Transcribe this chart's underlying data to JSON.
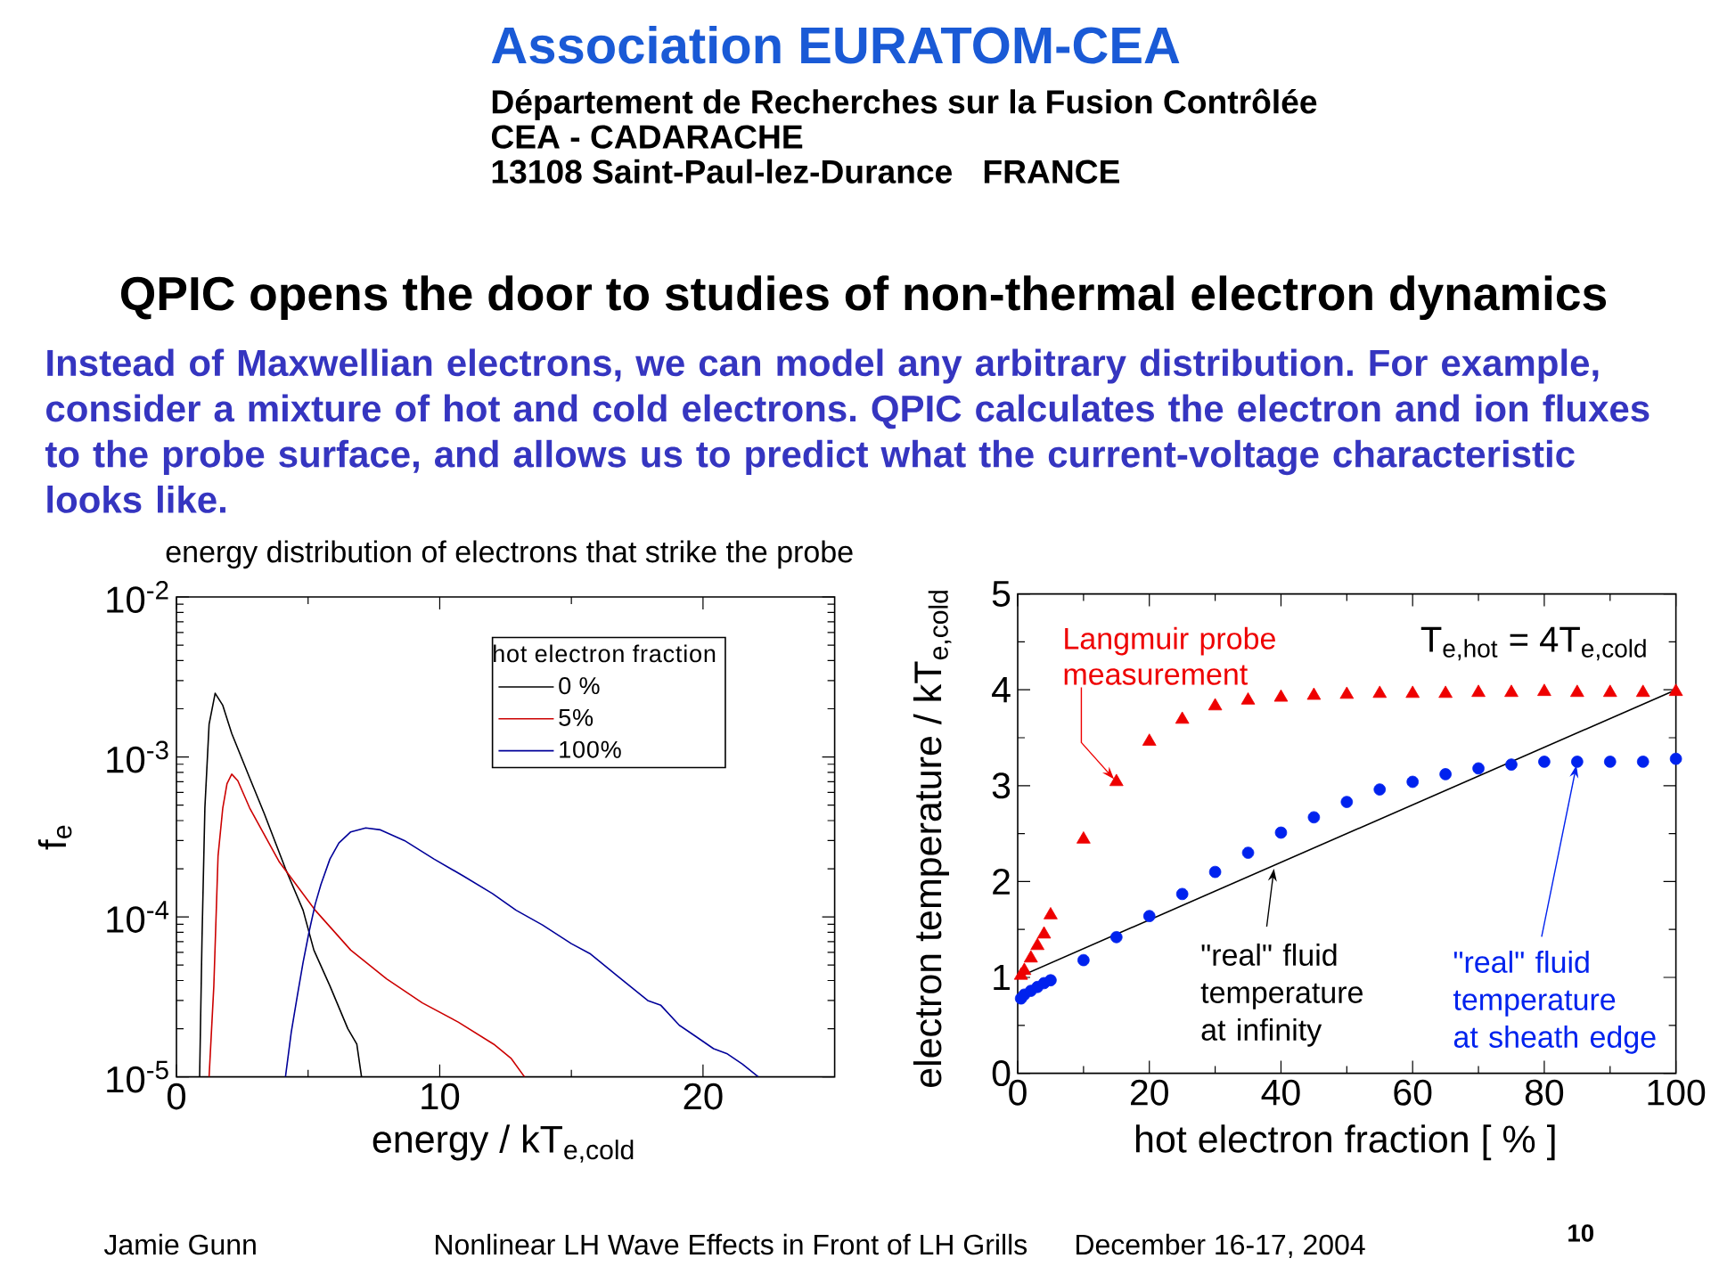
{
  "chart_data": [
    {
      "type": "other",
      "title": "QPIC opens the door to studies of non-thermal electron dynamics",
      "subtitle": "Instead of Maxwellian electrons, we can model any arbitrary distribution. For example, consider a mixture of hot and cold electrons. QPIC calculates the electron and ion fluxes to the probe surface, and allows us to predict what the current-voltage characteristic looks like.",
      "annotations": [
        "Association EURATOM-CEA",
        "Département de Recherches sur la Fusion Contrôlée",
        "CEA - CADARACHE",
        "13108 Saint-Paul-lez-Durance",
        "FRANCE",
        "Jamie Gunn",
        "Nonlinear LH Wave Effects in Front of LH Grills",
        "December 16-17, 2004",
        "10"
      ]
    },
    {
      "type": "line",
      "title": "energy distribution of electrons that strike the probe",
      "xlabel": "energy / kT$_{e,cold}$",
      "ylabel": "f$_{e}$",
      "legend_title": "hot electron fraction",
      "legend": "top right",
      "log": "y",
      "xlim": [
        0,
        25
      ],
      "xticks": [
        0,
        10,
        20
      ],
      "ylim": [
        1e-05,
        0.01
      ],
      "yticks": [
        {
          "value": 1e-05,
          "label": "10$^{-5}$"
        },
        {
          "value": 0.0001,
          "label": "10$^{-4}$"
        },
        {
          "value": 0.001,
          "label": "10$^{-3}$"
        },
        {
          "value": 0.01,
          "label": "10$^{-2}$"
        }
      ],
      "series": [
        {
          "name": "0 %",
          "color": "#000000",
          "x": [
            0.88,
            0.97,
            1.08,
            1.24,
            1.47,
            1.76,
            2.1,
            2.78,
            3.34,
            4.14,
            4.81,
            5.22,
            5.83,
            6.51,
            6.85,
            7.03
          ],
          "values": [
            1e-05,
            7.2e-05,
            0.00048,
            0.0016,
            0.0025,
            0.0021,
            0.0014,
            0.00074,
            0.00044,
            0.0002,
            0.00011,
            6.2e-05,
            3.7e-05,
            2e-05,
            1.6e-05,
            1e-05
          ]
        },
        {
          "name": "5%",
          "color": "#CC0000",
          "x": [
            1.24,
            1.42,
            1.58,
            1.76,
            1.92,
            2.1,
            2.33,
            2.78,
            3.91,
            5.27,
            6.62,
            7.98,
            9.34,
            10.7,
            12.05,
            12.72,
            13.22
          ],
          "values": [
            1e-05,
            3.7e-05,
            0.00024,
            0.00048,
            0.00068,
            0.00078,
            0.00071,
            0.00048,
            0.00022,
            0.00011,
            6.2e-05,
            4.1e-05,
            2.9e-05,
            2.2e-05,
            1.6e-05,
            1.3e-05,
            1e-05
          ]
        },
        {
          "name": "100%",
          "color": "#000099",
          "x": [
            4.14,
            4.36,
            4.59,
            4.81,
            5.04,
            5.27,
            5.49,
            5.83,
            6.17,
            6.62,
            7.19,
            7.75,
            8.66,
            9.78,
            10.9,
            12.0,
            12.9,
            13.9,
            15.0,
            15.7,
            16.8,
            17.9,
            18.4,
            19.1,
            19.7,
            20.4,
            20.9,
            21.5,
            22.1
          ],
          "values": [
            1e-05,
            1.9e-05,
            3.2e-05,
            5.2e-05,
            8.1e-05,
            0.00012,
            0.00016,
            0.00023,
            0.00029,
            0.00034,
            0.00036,
            0.00035,
            0.0003,
            0.00023,
            0.00018,
            0.00014,
            0.00011,
            8.9e-05,
            6.8e-05,
            5.9e-05,
            4.2e-05,
            3e-05,
            2.8e-05,
            2.1e-05,
            1.8e-05,
            1.5e-05,
            1.4e-05,
            1.2e-05,
            1e-05
          ]
        }
      ]
    },
    {
      "type": "scatter",
      "xlabel": "hot electron fraction [ % ]",
      "ylabel": "electron temperature / kT$_{e,cold}$",
      "xlim": [
        0,
        100
      ],
      "xticks": [
        0,
        20,
        40,
        60,
        80,
        100
      ],
      "ylim": [
        0,
        5
      ],
      "yticks": [
        0,
        1,
        2,
        3,
        4,
        5
      ],
      "series": [
        {
          "color": "#EE0000",
          "marker": "triangle",
          "x": [
            0.5,
            1,
            2,
            3,
            4,
            5,
            10,
            15,
            20,
            25,
            30,
            35,
            40,
            45,
            50,
            55,
            60,
            65,
            70,
            75,
            80,
            85,
            90,
            95,
            100
          ],
          "values": [
            1.02,
            1.07,
            1.2,
            1.33,
            1.45,
            1.65,
            2.44,
            3.04,
            3.46,
            3.69,
            3.83,
            3.89,
            3.92,
            3.94,
            3.95,
            3.96,
            3.96,
            3.96,
            3.97,
            3.97,
            3.98,
            3.97,
            3.97,
            3.97,
            3.98
          ]
        },
        {
          "color": "#0022EE",
          "marker": "circle",
          "x": [
            0.5,
            1,
            2,
            3,
            4,
            5,
            10,
            15,
            20,
            25,
            30,
            35,
            40,
            45,
            50,
            55,
            60,
            65,
            70,
            75,
            80,
            85,
            90,
            95,
            100
          ],
          "values": [
            0.78,
            0.82,
            0.86,
            0.9,
            0.94,
            0.97,
            1.18,
            1.42,
            1.64,
            1.87,
            2.1,
            2.3,
            2.51,
            2.67,
            2.83,
            2.96,
            3.04,
            3.12,
            3.18,
            3.22,
            3.25,
            3.25,
            3.25,
            3.25,
            3.28
          ]
        },
        {
          "type": "line",
          "color": "#000000",
          "x": [
            0,
            100
          ],
          "values": [
            1,
            4
          ]
        }
      ],
      "annotations": [
        {
          "text": "Langmuir probe measurement",
          "x": 15,
          "y": 3.04
        },
        "T$_{e,hot}$ = 4T$_{e,cold}$",
        {
          "text": "\"real\" fluid temperature at infinity",
          "x": 39,
          "y": 2.17
        },
        {
          "text": "\"real\" fluid temperature at sheath edge",
          "x": 85,
          "y": 3.25
        }
      ]
    }
  ]
}
